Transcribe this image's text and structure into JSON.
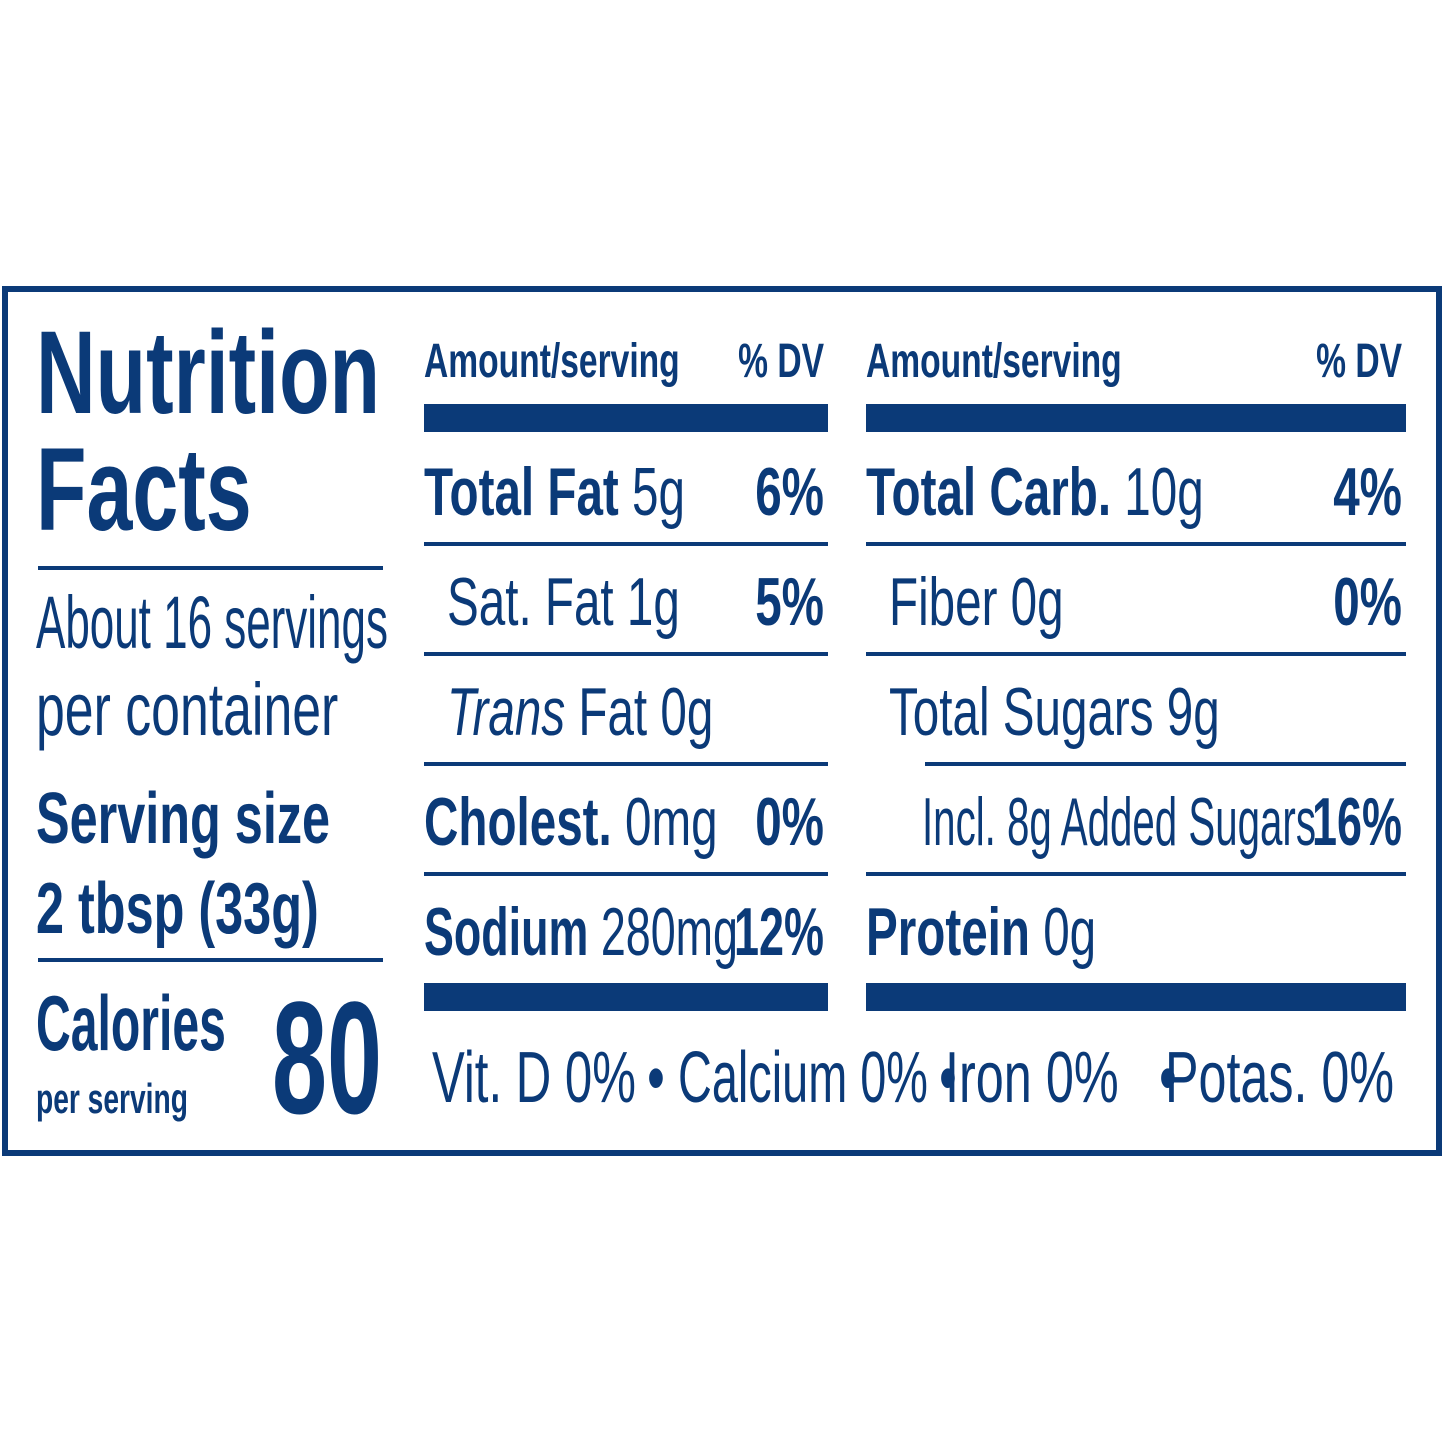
{
  "title": [
    "Nutrition",
    "Facts"
  ],
  "servings_per_container": [
    "About 16 servings",
    "per container"
  ],
  "serving_size": {
    "label": "Serving size",
    "value": "2 tbsp (33g)"
  },
  "calories": {
    "label": "Calories",
    "sublabel": "per serving",
    "value": 80
  },
  "columns": [
    {
      "header": {
        "amount": "Amount/serving",
        "dv": "% DV"
      },
      "rows": [
        {
          "name": "Total Fat",
          "amount": "5g",
          "dv": "6%",
          "bold": true,
          "level": 0
        },
        {
          "name": "Sat. Fat",
          "amount": "1g",
          "dv": "5%",
          "bold": false,
          "level": 1
        },
        {
          "name_italic": "Trans",
          "name": "Fat",
          "amount": "0g",
          "bold": false,
          "level": 1
        },
        {
          "name": "Cholest.",
          "amount": "0mg",
          "dv": "0%",
          "bold": true,
          "level": 0
        },
        {
          "name": "Sodium",
          "amount": "280mg",
          "dv": "12%",
          "bold": true,
          "level": 0
        }
      ]
    },
    {
      "header": {
        "amount": "Amount/serving",
        "dv": "% DV"
      },
      "rows": [
        {
          "name": "Total Carb.",
          "amount": "10g",
          "dv": "4%",
          "bold": true,
          "level": 0
        },
        {
          "name": "Fiber",
          "amount": "0g",
          "dv": "0%",
          "bold": false,
          "level": 1
        },
        {
          "name": "Total Sugars",
          "amount": "9g",
          "bold": false,
          "level": 1
        },
        {
          "name": "Incl. 8g Added Sugars",
          "dv": "16%",
          "bold": false,
          "level": 2
        },
        {
          "name": "Protein",
          "amount": "0g",
          "bold": true,
          "level": 0
        }
      ]
    }
  ],
  "footer": {
    "items": [
      "Vit. D 0%",
      "Calcium 0%",
      "Iron 0%",
      "Potas. 0%"
    ],
    "separator": "•"
  }
}
